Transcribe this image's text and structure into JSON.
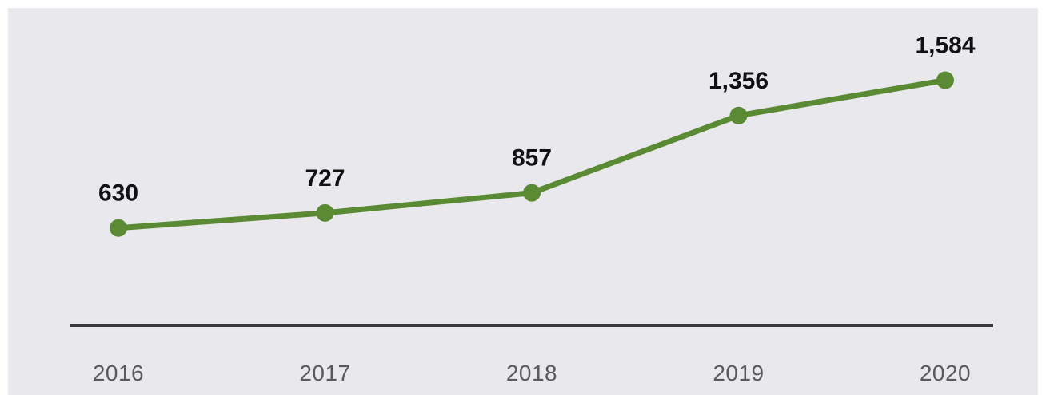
{
  "chart_data": {
    "type": "line",
    "title": "",
    "xlabel": "",
    "ylabel": "",
    "categories": [
      "2016",
      "2017",
      "2018",
      "2019",
      "2020"
    ],
    "series": [
      {
        "values": [
          630,
          727,
          857,
          1356,
          1584
        ],
        "labels": [
          "630",
          "727",
          "857",
          "1,356",
          "1,584"
        ]
      }
    ],
    "ylim": [
      0,
      1750
    ],
    "grid": false,
    "legend": "none",
    "colors": {
      "line": "#5a8a34",
      "background": "#e9e8ec",
      "baseline": "#3a3a3a",
      "value_text": "#111111",
      "tick_text": "#5a5a5a"
    }
  }
}
